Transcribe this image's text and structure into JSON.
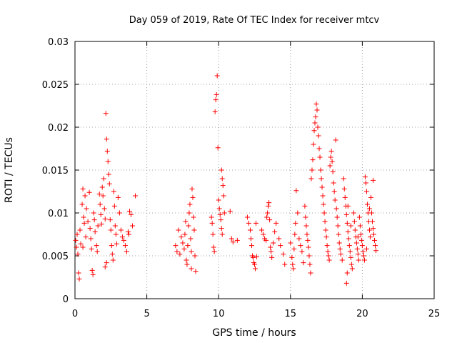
{
  "chart_data": {
    "type": "scatter",
    "title": "Day 059 of 2019, Rate Of TEC Index for receiver mtcv",
    "xlabel": "GPS time / hours",
    "ylabel": "ROTI / TECUs",
    "xlim": [
      0,
      25
    ],
    "ylim": [
      0,
      0.03
    ],
    "xticks": [
      0,
      5,
      10,
      15,
      20,
      25
    ],
    "xtick_labels": [
      "0",
      "5",
      "10",
      "15",
      "20",
      "25"
    ],
    "yticks": [
      0,
      0.005,
      0.01,
      0.015,
      0.02,
      0.025,
      0.03
    ],
    "ytick_labels": [
      "0",
      "0.005",
      "0.01",
      "0.015",
      "0.02",
      "0.025",
      "0.03"
    ],
    "grid": true,
    "marker": "+",
    "color": "#ff0000",
    "series": [
      {
        "name": "ROTI",
        "points": [
          [
            0.05,
            0.0068
          ],
          [
            0.1,
            0.006
          ],
          [
            0.15,
            0.0075
          ],
          [
            0.2,
            0.0052
          ],
          [
            0.25,
            0.003
          ],
          [
            0.3,
            0.0023
          ],
          [
            0.35,
            0.008
          ],
          [
            0.4,
            0.0064
          ],
          [
            0.5,
            0.011
          ],
          [
            0.55,
            0.0128
          ],
          [
            0.6,
            0.0095
          ],
          [
            0.65,
            0.0088
          ],
          [
            0.7,
            0.012
          ],
          [
            0.75,
            0.0072
          ],
          [
            0.8,
            0.0105
          ],
          [
            1.0,
            0.0124
          ],
          [
            1.05,
            0.0082
          ],
          [
            1.1,
            0.007
          ],
          [
            1.15,
            0.0058
          ],
          [
            1.2,
            0.0033
          ],
          [
            1.25,
            0.0028
          ],
          [
            1.3,
            0.01
          ],
          [
            1.35,
            0.0092
          ],
          [
            1.4,
            0.0078
          ],
          [
            1.5,
            0.0062
          ],
          [
            1.55,
            0.0055
          ],
          [
            1.6,
            0.0085
          ],
          [
            1.7,
            0.0122
          ],
          [
            1.75,
            0.011
          ],
          [
            1.8,
            0.0098
          ],
          [
            1.85,
            0.0087
          ],
          [
            1.9,
            0.013
          ],
          [
            1.95,
            0.012
          ],
          [
            2.0,
            0.014
          ],
          [
            2.05,
            0.0105
          ],
          [
            2.1,
            0.0093
          ],
          [
            2.15,
            0.0216
          ],
          [
            2.2,
            0.0186
          ],
          [
            2.25,
            0.0172
          ],
          [
            2.3,
            0.016
          ],
          [
            2.35,
            0.0145
          ],
          [
            2.4,
            0.0134
          ],
          [
            2.45,
            0.0092
          ],
          [
            2.5,
            0.008
          ],
          [
            2.55,
            0.0062
          ],
          [
            2.6,
            0.0052
          ],
          [
            2.65,
            0.0045
          ],
          [
            2.7,
            0.0125
          ],
          [
            2.75,
            0.0108
          ],
          [
            2.8,
            0.0085
          ],
          [
            2.85,
            0.0075
          ],
          [
            2.9,
            0.0064
          ],
          [
            3.0,
            0.0118
          ],
          [
            3.1,
            0.01
          ],
          [
            3.2,
            0.008
          ],
          [
            3.3,
            0.0072
          ],
          [
            3.4,
            0.0068
          ],
          [
            3.5,
            0.0062
          ],
          [
            3.6,
            0.0055
          ],
          [
            3.7,
            0.0078
          ],
          [
            3.8,
            0.0102
          ],
          [
            3.9,
            0.0098
          ],
          [
            4.0,
            0.0085
          ],
          [
            3.75,
            0.0075
          ],
          [
            4.2,
            0.012
          ],
          [
            2.2,
            0.0042
          ],
          [
            2.1,
            0.0037
          ],
          [
            0.9,
            0.009
          ],
          [
            0.55,
            0.006
          ],
          [
            7.0,
            0.0062
          ],
          [
            7.1,
            0.0055
          ],
          [
            7.2,
            0.008
          ],
          [
            7.3,
            0.0052
          ],
          [
            7.4,
            0.0072
          ],
          [
            7.5,
            0.0065
          ],
          [
            7.6,
            0.0058
          ],
          [
            7.7,
            0.009
          ],
          [
            7.75,
            0.0045
          ],
          [
            7.8,
            0.004
          ],
          [
            7.85,
            0.0062
          ],
          [
            7.9,
            0.0085
          ],
          [
            7.95,
            0.01
          ],
          [
            8.0,
            0.011
          ],
          [
            8.05,
            0.007
          ],
          [
            8.1,
            0.0055
          ],
          [
            8.15,
            0.0128
          ],
          [
            8.2,
            0.0118
          ],
          [
            8.25,
            0.0095
          ],
          [
            8.3,
            0.008
          ],
          [
            8.35,
            0.005
          ],
          [
            8.4,
            0.0032
          ],
          [
            8.1,
            0.0035
          ],
          [
            7.65,
            0.0075
          ],
          [
            9.5,
            0.0095
          ],
          [
            9.55,
            0.0088
          ],
          [
            9.6,
            0.0075
          ],
          [
            9.65,
            0.006
          ],
          [
            9.7,
            0.0055
          ],
          [
            9.75,
            0.0218
          ],
          [
            9.8,
            0.0232
          ],
          [
            9.85,
            0.0238
          ],
          [
            9.9,
            0.026
          ],
          [
            9.95,
            0.0176
          ],
          [
            10.0,
            0.0115
          ],
          [
            10.05,
            0.0105
          ],
          [
            10.1,
            0.0098
          ],
          [
            10.15,
            0.0092
          ],
          [
            10.2,
            0.015
          ],
          [
            10.25,
            0.014
          ],
          [
            10.3,
            0.0132
          ],
          [
            10.35,
            0.012
          ],
          [
            10.4,
            0.01
          ],
          [
            10.2,
            0.0082
          ],
          [
            10.25,
            0.0075
          ],
          [
            10.8,
            0.0102
          ],
          [
            10.9,
            0.007
          ],
          [
            11.0,
            0.0066
          ],
          [
            11.3,
            0.0068
          ],
          [
            12.0,
            0.0095
          ],
          [
            12.1,
            0.0088
          ],
          [
            12.2,
            0.008
          ],
          [
            12.25,
            0.007
          ],
          [
            12.3,
            0.0062
          ],
          [
            12.35,
            0.005
          ],
          [
            12.4,
            0.0048
          ],
          [
            12.45,
            0.0042
          ],
          [
            12.5,
            0.004
          ],
          [
            12.55,
            0.0035
          ],
          [
            12.6,
            0.0088
          ],
          [
            12.65,
            0.0049
          ],
          [
            13.0,
            0.008
          ],
          [
            13.1,
            0.0075
          ],
          [
            13.2,
            0.007
          ],
          [
            13.3,
            0.0068
          ],
          [
            13.35,
            0.0095
          ],
          [
            13.4,
            0.01
          ],
          [
            13.45,
            0.0108
          ],
          [
            13.5,
            0.0112
          ],
          [
            13.55,
            0.0092
          ],
          [
            13.6,
            0.006
          ],
          [
            13.65,
            0.0055
          ],
          [
            13.7,
            0.0048
          ],
          [
            13.8,
            0.0065
          ],
          [
            13.9,
            0.0078
          ],
          [
            14.0,
            0.0088
          ],
          [
            14.2,
            0.007
          ],
          [
            14.3,
            0.0062
          ],
          [
            14.5,
            0.0052
          ],
          [
            14.6,
            0.004
          ],
          [
            15.0,
            0.0065
          ],
          [
            15.1,
            0.0048
          ],
          [
            15.15,
            0.004
          ],
          [
            15.2,
            0.0035
          ],
          [
            15.25,
            0.0058
          ],
          [
            15.3,
            0.0075
          ],
          [
            15.35,
            0.0088
          ],
          [
            15.4,
            0.0126
          ],
          [
            15.5,
            0.01
          ],
          [
            15.6,
            0.007
          ],
          [
            15.7,
            0.0062
          ],
          [
            15.8,
            0.0055
          ],
          [
            15.9,
            0.0042
          ],
          [
            16.0,
            0.0108
          ],
          [
            16.05,
            0.0095
          ],
          [
            16.1,
            0.0085
          ],
          [
            16.15,
            0.0075
          ],
          [
            16.2,
            0.0068
          ],
          [
            16.25,
            0.006
          ],
          [
            16.3,
            0.005
          ],
          [
            16.35,
            0.004
          ],
          [
            16.4,
            0.003
          ],
          [
            16.45,
            0.014
          ],
          [
            16.5,
            0.015
          ],
          [
            16.55,
            0.0162
          ],
          [
            16.6,
            0.018
          ],
          [
            16.65,
            0.0196
          ],
          [
            16.7,
            0.0205
          ],
          [
            16.75,
            0.0212
          ],
          [
            16.8,
            0.0227
          ],
          [
            16.85,
            0.022
          ],
          [
            16.9,
            0.02
          ],
          [
            16.95,
            0.019
          ],
          [
            17.0,
            0.0175
          ],
          [
            17.05,
            0.0165
          ],
          [
            17.1,
            0.015
          ],
          [
            17.15,
            0.014
          ],
          [
            17.2,
            0.013
          ],
          [
            17.25,
            0.012
          ],
          [
            17.3,
            0.011
          ],
          [
            17.35,
            0.01
          ],
          [
            17.4,
            0.009
          ],
          [
            17.45,
            0.008
          ],
          [
            17.5,
            0.0072
          ],
          [
            17.55,
            0.0062
          ],
          [
            17.6,
            0.0055
          ],
          [
            17.65,
            0.005
          ],
          [
            17.7,
            0.0045
          ],
          [
            17.75,
            0.0155
          ],
          [
            17.8,
            0.0165
          ],
          [
            17.85,
            0.0172
          ],
          [
            17.9,
            0.016
          ],
          [
            17.95,
            0.0148
          ],
          [
            18.0,
            0.0135
          ],
          [
            18.05,
            0.0125
          ],
          [
            18.1,
            0.0115
          ],
          [
            18.15,
            0.0185
          ],
          [
            18.2,
            0.0105
          ],
          [
            18.25,
            0.0095
          ],
          [
            18.3,
            0.0085
          ],
          [
            18.35,
            0.0075
          ],
          [
            18.4,
            0.0065
          ],
          [
            18.45,
            0.0058
          ],
          [
            18.5,
            0.0052
          ],
          [
            18.6,
            0.0045
          ],
          [
            18.7,
            0.014
          ],
          [
            18.75,
            0.0128
          ],
          [
            18.8,
            0.0118
          ],
          [
            18.85,
            0.0108
          ],
          [
            18.9,
            0.0098
          ],
          [
            18.95,
            0.0088
          ],
          [
            19.0,
            0.0078
          ],
          [
            19.05,
            0.007
          ],
          [
            19.1,
            0.0062
          ],
          [
            19.15,
            0.0055
          ],
          [
            19.2,
            0.0048
          ],
          [
            19.25,
            0.004
          ],
          [
            19.3,
            0.0035
          ],
          [
            18.9,
            0.0018
          ],
          [
            18.95,
            0.003
          ],
          [
            19.4,
            0.01
          ],
          [
            19.45,
            0.009
          ],
          [
            19.5,
            0.008
          ],
          [
            19.55,
            0.0072
          ],
          [
            19.6,
            0.0065
          ],
          [
            19.65,
            0.0058
          ],
          [
            19.7,
            0.0052
          ],
          [
            19.75,
            0.0045
          ],
          [
            19.8,
            0.0095
          ],
          [
            19.85,
            0.0085
          ],
          [
            19.9,
            0.0075
          ],
          [
            19.95,
            0.0068
          ],
          [
            20.0,
            0.0062
          ],
          [
            20.05,
            0.0055
          ],
          [
            20.1,
            0.005
          ],
          [
            20.15,
            0.0045
          ],
          [
            20.2,
            0.0142
          ],
          [
            20.25,
            0.0135
          ],
          [
            20.3,
            0.0125
          ],
          [
            20.35,
            0.011
          ],
          [
            20.4,
            0.01
          ],
          [
            20.45,
            0.009
          ],
          [
            20.5,
            0.008
          ],
          [
            20.55,
            0.0072
          ],
          [
            20.6,
            0.0118
          ],
          [
            20.65,
            0.01
          ],
          [
            20.7,
            0.009
          ],
          [
            20.75,
            0.0082
          ],
          [
            20.8,
            0.0075
          ],
          [
            20.85,
            0.0068
          ],
          [
            20.9,
            0.0062
          ],
          [
            20.95,
            0.0056
          ],
          [
            20.75,
            0.0138
          ],
          [
            20.5,
            0.0105
          ],
          [
            19.7,
            0.0072
          ],
          [
            19.2,
            0.0085
          ],
          [
            20.3,
            0.0058
          ],
          [
            19.0,
            0.0108
          ]
        ]
      }
    ]
  }
}
